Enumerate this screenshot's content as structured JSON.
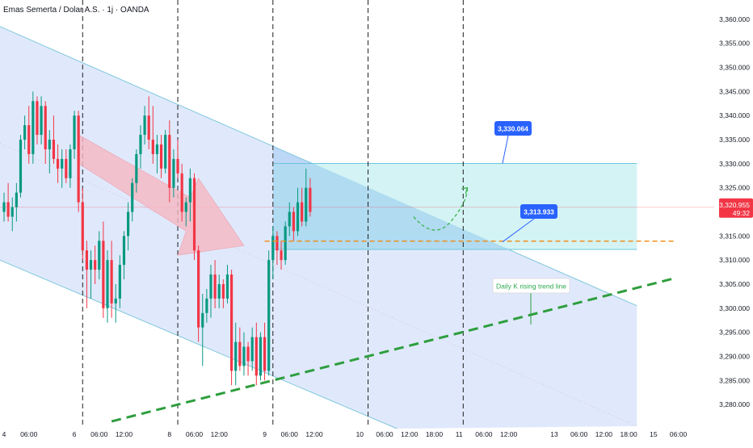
{
  "chart_data": {
    "type": "candlestick",
    "title": "Emas Semerta / Dolar A.S. · 1j · OANDA",
    "y_ticks": [
      "3,360.000",
      "3,355.000",
      "3,350.000",
      "3,345.000",
      "3,340.000",
      "3,335.000",
      "3,330.000",
      "3,325.000",
      "3,320.000",
      "3,315.000",
      "3,310.000",
      "3,305.000",
      "3,300.000",
      "3,295.000",
      "3,290.000",
      "3,285.000",
      "3,280.000"
    ],
    "y_tick_values": [
      3360,
      3355,
      3350,
      3345,
      3340,
      3335,
      3330,
      3325,
      3320,
      3315,
      3310,
      3305,
      3300,
      3295,
      3290,
      3285,
      3280
    ],
    "ylim": [
      3275.5,
      3364
    ],
    "x_ticks": [
      {
        "label": "4",
        "t": 0
      },
      {
        "label": "06:00",
        "t": 6
      },
      {
        "label": "6",
        "t": 17
      },
      {
        "label": "06:00",
        "t": 23
      },
      {
        "label": "12:00",
        "t": 29
      },
      {
        "label": "8",
        "t": 40
      },
      {
        "label": "06:00",
        "t": 46
      },
      {
        "label": "12:00",
        "t": 52
      },
      {
        "label": "9",
        "t": 63
      },
      {
        "label": "06:00",
        "t": 69
      },
      {
        "label": "12:00",
        "t": 75
      },
      {
        "label": "10",
        "t": 86
      },
      {
        "label": "06:00",
        "t": 92
      },
      {
        "label": "12:00",
        "t": 98
      },
      {
        "label": "18:00",
        "t": 104
      },
      {
        "label": "11",
        "t": 110
      },
      {
        "label": "06:00",
        "t": 116
      },
      {
        "label": "12:00",
        "t": 122
      },
      {
        "label": "13",
        "t": 133
      },
      {
        "label": "06:00",
        "t": 139
      },
      {
        "label": "12:00",
        "t": 145
      },
      {
        "label": "18:00",
        "t": 151
      },
      {
        "label": "15",
        "t": 157
      },
      {
        "label": "06:00",
        "t": 163
      }
    ],
    "day_separators_t": [
      19,
      42,
      65,
      88,
      111
    ],
    "current_price": "3,320.955",
    "countdown": "49:32",
    "current_price_value": 3320.955,
    "callouts": [
      {
        "label": "3,330.064",
        "value": 3330.064
      },
      {
        "label": "3,313.933",
        "value": 3313.933
      }
    ],
    "note": "Daily K rising trend line",
    "zone": {
      "top": 3330.064,
      "bottom": 3312.2,
      "t_start": 65,
      "t_end": 153
    },
    "support_level": 3313.933,
    "channel": {
      "upper": [
        [
          -1,
          3358.5
        ],
        [
          153,
          3300.5
        ]
      ],
      "lower": [
        [
          -1,
          3310
        ],
        [
          95,
          3275
        ]
      ],
      "t_end": 153
    },
    "trend_line": [
      [
        26,
        3276.5
      ],
      [
        162,
        3306.2
      ]
    ],
    "colors": {
      "up": "#089981",
      "down": "#f23645",
      "channel_fill": "#dbe5fb",
      "channel_line": "#7fc8dc",
      "zone_fill": "#c9f0f2",
      "zone_line": "#6cc8de",
      "callout": "#2962ff",
      "trend": "#2e9e3e",
      "support": "#f0901e",
      "price_tag": "#f23645",
      "arrow": "#f5b6c0"
    },
    "candles": [
      [
        3320,
        3324,
        3318,
        3322
      ],
      [
        3322,
        3326,
        3318,
        3319
      ],
      [
        3319,
        3323,
        3316,
        3321
      ],
      [
        3321,
        3326,
        3318,
        3324
      ],
      [
        3324,
        3336,
        3323,
        3335
      ],
      [
        3335,
        3340,
        3333,
        3338
      ],
      [
        3338,
        3342,
        3330,
        3332
      ],
      [
        3332,
        3345,
        3330,
        3343
      ],
      [
        3343,
        3344,
        3334,
        3336
      ],
      [
        3336,
        3344,
        3334,
        3342
      ],
      [
        3342,
        3343,
        3330,
        3333
      ],
      [
        3333,
        3337,
        3328,
        3335
      ],
      [
        3335,
        3340,
        3330,
        3331
      ],
      [
        3331,
        3334,
        3326,
        3329
      ],
      [
        3329,
        3333,
        3325,
        3331
      ],
      [
        3331,
        3333,
        3326,
        3327
      ],
      [
        3327,
        3334,
        3325,
        3333
      ],
      [
        3333,
        3341,
        3331,
        3340
      ],
      [
        3340,
        3341,
        3320,
        3322
      ],
      [
        3322,
        3325,
        3310,
        3312
      ],
      [
        3312,
        3314,
        3300,
        3308
      ],
      [
        3308,
        3312,
        3302,
        3310
      ],
      [
        3310,
        3313,
        3305,
        3308
      ],
      [
        3308,
        3316,
        3306,
        3314
      ],
      [
        3314,
        3318,
        3298,
        3300
      ],
      [
        3300,
        3312,
        3297,
        3310
      ],
      [
        3310,
        3314,
        3298,
        3301
      ],
      [
        3301,
        3305,
        3297,
        3302
      ],
      [
        3302,
        3311,
        3300,
        3309
      ],
      [
        3309,
        3316,
        3306,
        3315
      ],
      [
        3315,
        3322,
        3312,
        3320
      ],
      [
        3320,
        3327,
        3318,
        3326
      ],
      [
        3326,
        3333,
        3324,
        3332
      ],
      [
        3332,
        3338,
        3329,
        3336
      ],
      [
        3336,
        3342,
        3334,
        3340
      ],
      [
        3340,
        3344,
        3333,
        3335
      ],
      [
        3335,
        3342,
        3330,
        3332
      ],
      [
        3332,
        3336,
        3328,
        3334
      ],
      [
        3334,
        3336,
        3327,
        3329
      ],
      [
        3329,
        3337,
        3328,
        3336
      ],
      [
        3336,
        3339,
        3322,
        3325
      ],
      [
        3325,
        3333,
        3323,
        3331
      ],
      [
        3331,
        3335,
        3327,
        3328
      ],
      [
        3328,
        3330,
        3318,
        3320
      ],
      [
        3320,
        3323,
        3317,
        3322
      ],
      [
        3322,
        3329,
        3318,
        3327
      ],
      [
        3327,
        3328,
        3310,
        3312
      ],
      [
        3312,
        3313,
        3293,
        3296
      ],
      [
        3296,
        3303,
        3288,
        3299
      ],
      [
        3299,
        3304,
        3297,
        3302
      ],
      [
        3302,
        3309,
        3298,
        3307
      ],
      [
        3307,
        3310,
        3300,
        3302
      ],
      [
        3302,
        3307,
        3300,
        3305
      ],
      [
        3305,
        3306,
        3300,
        3302
      ],
      [
        3302,
        3309,
        3301,
        3307
      ],
      [
        3307,
        3308,
        3284,
        3287
      ],
      [
        3287,
        3297,
        3284,
        3293
      ],
      [
        3293,
        3296,
        3287,
        3288
      ],
      [
        3288,
        3295,
        3286,
        3292
      ],
      [
        3292,
        3293,
        3286,
        3289
      ],
      [
        3289,
        3296,
        3287,
        3294
      ],
      [
        3294,
        3297,
        3284,
        3286
      ],
      [
        3286,
        3295,
        3285,
        3294
      ],
      [
        3294,
        3297,
        3285,
        3287
      ],
      [
        3287,
        3312,
        3286,
        3310
      ],
      [
        3310,
        3317,
        3306,
        3315
      ],
      [
        3315,
        3316,
        3309,
        3312
      ],
      [
        3312,
        3314,
        3308,
        3310
      ],
      [
        3310,
        3318,
        3309,
        3317
      ],
      [
        3317,
        3322,
        3315,
        3320
      ],
      [
        3320,
        3321,
        3314,
        3316
      ],
      [
        3316,
        3325,
        3315,
        3322
      ],
      [
        3322,
        3325,
        3317,
        3318
      ],
      [
        3318,
        3329,
        3317,
        3325
      ],
      [
        3325,
        3327,
        3319,
        3320
      ]
    ]
  }
}
